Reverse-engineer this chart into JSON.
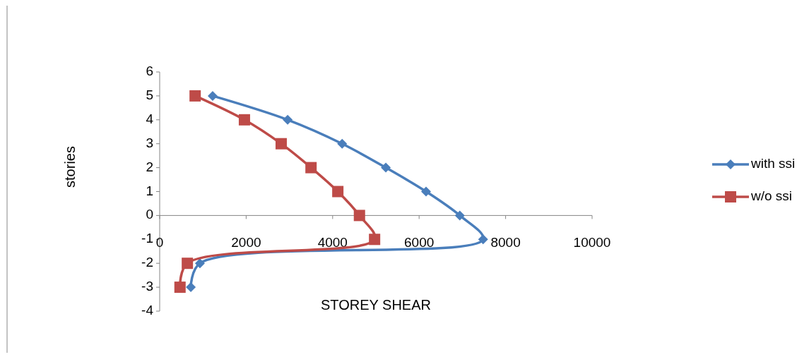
{
  "chart_data": {
    "type": "line",
    "xlabel": "STOREY  SHEAR",
    "ylabel": "stories",
    "xlim": [
      0,
      10000
    ],
    "xticks": [
      0,
      2000,
      4000,
      6000,
      8000,
      10000
    ],
    "ylim": [
      -4,
      6
    ],
    "yticks": [
      -4,
      -3,
      -2,
      -1,
      0,
      1,
      2,
      3,
      4,
      5,
      6
    ],
    "legend": "right",
    "grid": false,
    "series": [
      {
        "name": "with ssi",
        "color": "#4a7ebb",
        "marker": "diamond",
        "x": [
          1225,
          2960,
          4220,
          5230,
          6160,
          6940,
          7480,
          930,
          720
        ],
        "values": [
          5,
          4,
          3,
          2,
          1,
          0,
          -1,
          -2,
          -3
        ]
      },
      {
        "name": "w/o ssi",
        "color": "#be4b48",
        "marker": "square",
        "x": [
          820,
          1960,
          2810,
          3500,
          4120,
          4620,
          4970,
          640,
          470
        ],
        "values": [
          5,
          4,
          3,
          2,
          1,
          0,
          -1,
          -2,
          -3
        ]
      }
    ]
  }
}
